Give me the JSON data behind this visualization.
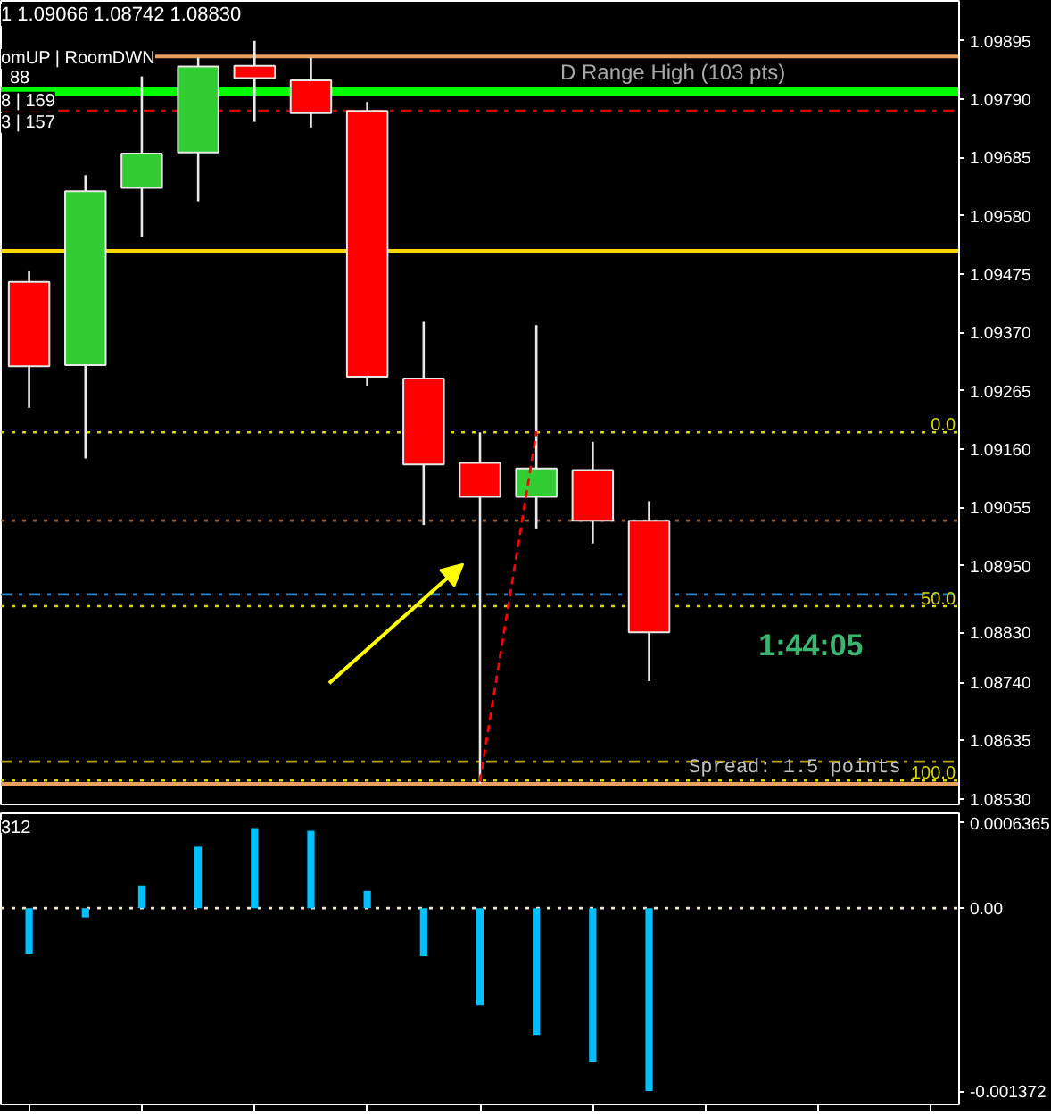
{
  "chart_data": [
    {
      "type": "candlestick",
      "title": "1 1.09066 1.08742 1.08830",
      "categories": [
        null,
        null,
        null,
        null,
        null,
        null,
        null,
        null,
        null,
        null,
        null,
        null,
        null,
        null,
        null,
        null,
        null
      ],
      "ohlc": [
        [
          1.09461,
          1.0948,
          1.09234,
          1.09309
        ],
        [
          1.09311,
          1.09653,
          1.09143,
          1.09624
        ],
        [
          1.0963,
          1.09831,
          1.09542,
          1.09692
        ],
        [
          1.09694,
          1.09865,
          1.09606,
          1.09849
        ],
        [
          1.0985,
          1.09895,
          1.09749,
          1.09828
        ],
        [
          1.09824,
          1.09865,
          1.09739,
          1.09765
        ],
        [
          1.09769,
          1.09785,
          1.09274,
          1.0929
        ],
        [
          1.09287,
          1.09389,
          1.09023,
          1.09132
        ],
        [
          1.09135,
          1.0919,
          1.08557,
          1.09074
        ],
        [
          1.09074,
          1.09383,
          1.09017,
          1.09125
        ],
        [
          1.09122,
          1.09173,
          1.0899,
          1.09031
        ],
        [
          1.09031,
          1.09066,
          1.08742,
          1.0883
        ],
        null,
        null,
        null,
        null,
        null
      ],
      "colors": [
        "#ff0000",
        "#32cd32",
        "#32cd32",
        "#32cd32",
        "#ff0000",
        "#ff0000",
        "#ff0000",
        "#ff0000",
        "#ff0000",
        "#32cd32",
        "#ff0000",
        "#ff0000",
        null,
        null,
        null,
        null,
        null
      ],
      "series": [
        {
          "type": "line",
          "values": [
            null,
            null,
            null,
            null,
            null,
            null,
            null,
            null,
            1.08563,
            1.0919,
            null,
            null,
            null,
            null,
            null,
            null,
            null
          ],
          "color": "#ff0000",
          "line_style": "dotted"
        }
      ],
      "ylim": [
        1.0852,
        1.09967
      ],
      "yticks": [
        1.09895,
        {
          "value": 1.0979,
          "label": "1.09790"
        },
        1.09685,
        {
          "value": 1.0958,
          "label": "1.09580"
        },
        1.09475,
        {
          "value": 1.0937,
          "label": "1.09370"
        },
        1.09265,
        {
          "value": 1.0916,
          "label": "1.09160"
        },
        1.09055,
        {
          "value": 1.0895,
          "label": "1.08950"
        },
        {
          "value": 1.0883,
          "label": "1.08830"
        },
        {
          "value": 1.0874,
          "label": "1.08740"
        },
        1.08635,
        {
          "value": 1.0853,
          "label": "1.08530"
        }
      ],
      "ref_lines": [
        {
          "axis": "y",
          "value": 1.09867,
          "label": "D Range High (103 pts)",
          "color": "#e8a060",
          "line_style": "solid"
        },
        {
          "axis": "y",
          "value": 1.09803,
          "color": "#00ff00",
          "line_style": "solid"
        },
        {
          "axis": "y",
          "value": 1.09769,
          "color": "#d40000",
          "line_style": "dashdot"
        },
        {
          "axis": "y",
          "value": 1.09517,
          "color": "#ffd700",
          "line_style": "solid"
        },
        {
          "axis": "y",
          "value": 1.0919,
          "color": "#d8d800",
          "line_style": "dotted"
        },
        {
          "axis": "y",
          "value": 1.09031,
          "color": "#a0623a",
          "line_style": "dotted"
        },
        {
          "axis": "y",
          "value": 1.08898,
          "color": "#2a7fc0",
          "line_style": "dashdot"
        },
        {
          "axis": "y",
          "value": 1.08877,
          "color": "#d8d800",
          "line_style": "dotted"
        },
        {
          "axis": "y",
          "value": 1.08597,
          "color": "#b8a000",
          "line_style": "dashdot"
        },
        {
          "axis": "y",
          "value": 1.08563,
          "color": "#d8d800",
          "line_style": "dotted"
        },
        {
          "axis": "y",
          "value": 1.08557,
          "color": "#e8a060",
          "line_style": "solid"
        }
      ],
      "annotations": [
        "omUP | RoomDWN",
        "88",
        "8 | 169",
        "3 | 157",
        "1:44:05",
        "Spread: 1.5 points",
        {
          "text": "0.0",
          "y": 1.0919
        },
        {
          "text": "50.0",
          "y": 1.08877
        },
        {
          "text": "100.0",
          "y": 1.08563
        }
      ],
      "tick_labels": "y"
    },
    {
      "type": "bar",
      "categories": [
        null,
        null,
        null,
        null,
        null,
        null,
        null,
        null,
        null,
        null,
        null,
        null,
        null,
        null,
        null,
        null,
        null
      ],
      "values": [
        -0.00034,
        -7e-05,
        0.00017,
        0.00046,
        0.0006,
        0.00058,
        0.00013,
        -0.00036,
        -0.00073,
        -0.00095,
        -0.00115,
        -0.00137,
        null,
        null,
        null,
        null,
        null
      ],
      "color": "#00bfff",
      "ylim": [
        -0.00147,
        0.00071
      ],
      "yticks": [
        0.0006365,
        {
          "value": 0,
          "label": "0.00"
        },
        -0.001372
      ],
      "ref_lines": [
        {
          "axis": "y",
          "value": 0,
          "color": "#f0e6c8",
          "line_style": "dotted"
        }
      ],
      "annotations": [
        "312"
      ],
      "tick_labels": "y"
    }
  ]
}
